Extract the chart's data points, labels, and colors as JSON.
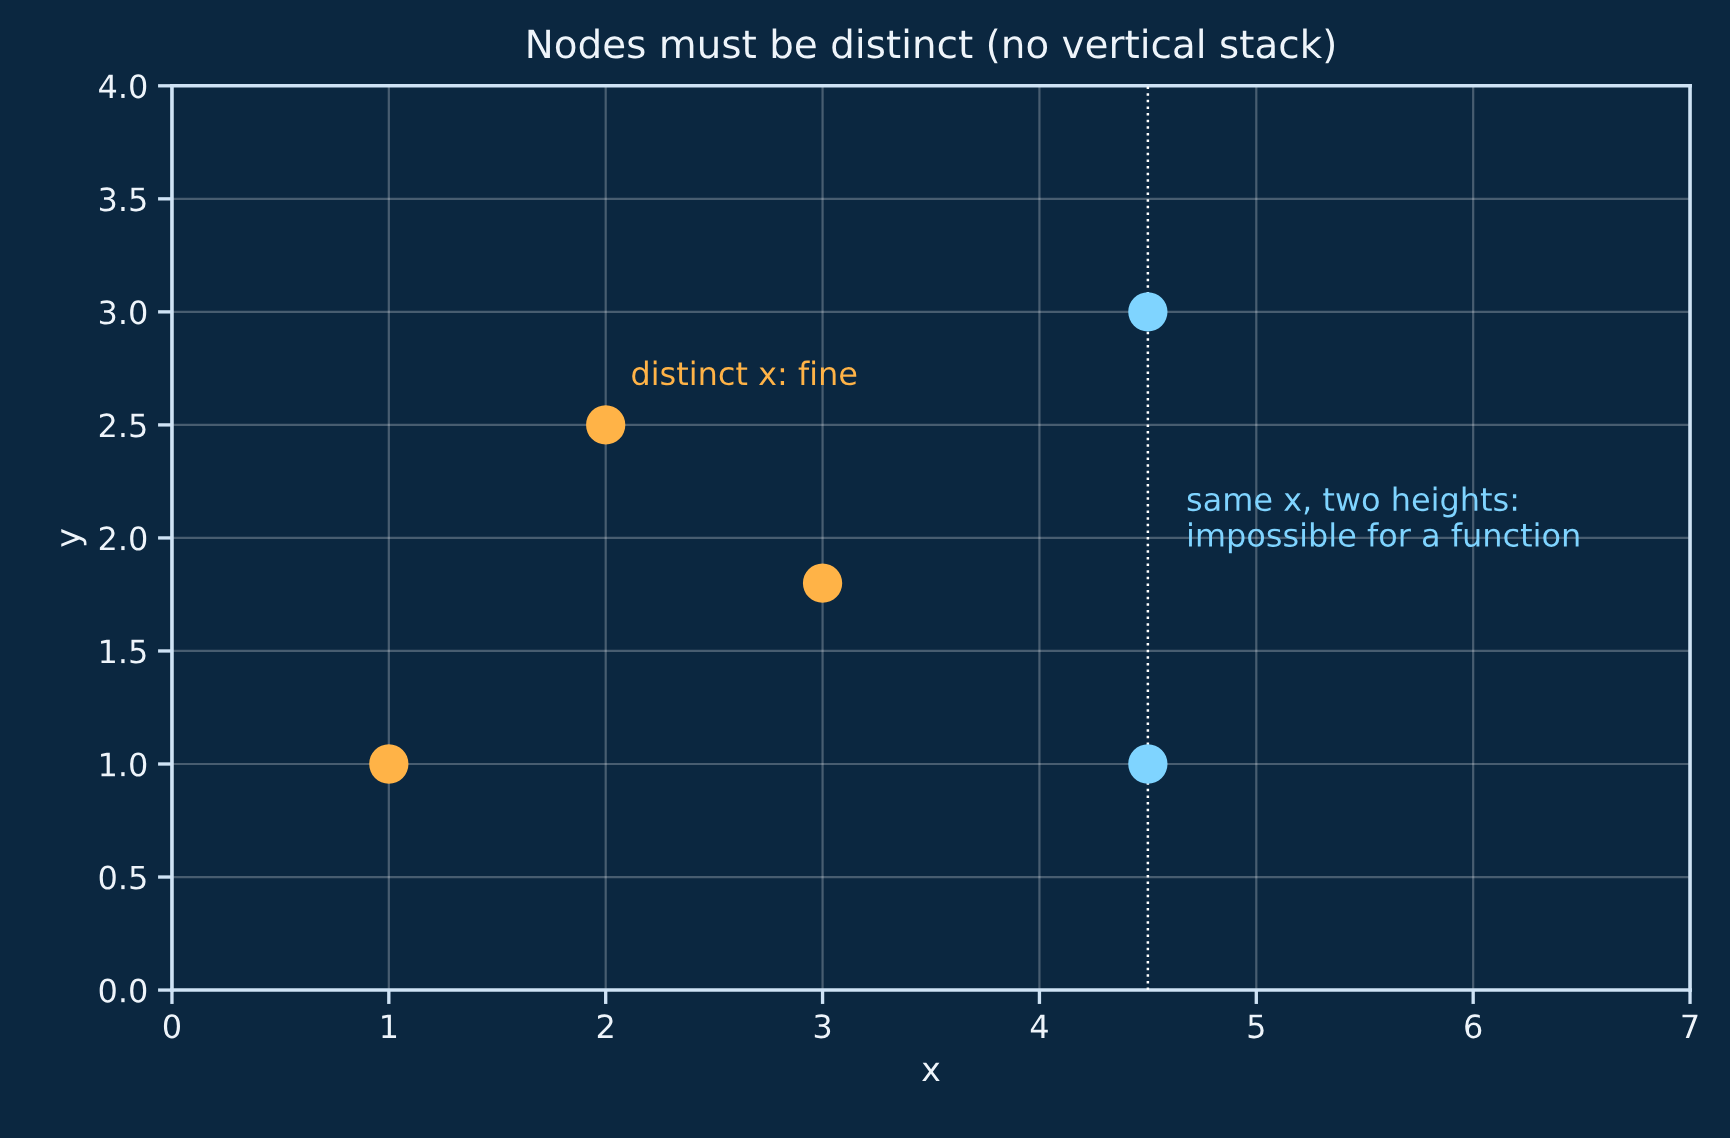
{
  "chart_data": {
    "type": "scatter",
    "title": "Nodes must be distinct (no vertical stack)",
    "xlabel": "x",
    "ylabel": "y",
    "series": [
      {
        "color": "#ffb347",
        "x": [
          1,
          2,
          3
        ],
        "values": [
          1.0,
          2.5,
          1.8
        ]
      },
      {
        "color": "#7fd4ff",
        "x": [
          4.5,
          4.5
        ],
        "values": [
          3.0,
          1.0
        ]
      }
    ],
    "xlim": [
      0,
      7
    ],
    "xticks": [
      0,
      1,
      2,
      3,
      4,
      5,
      6,
      7
    ],
    "ylim": [
      0,
      4
    ],
    "yticks": [
      {
        "value": 0,
        "label": "0.0"
      },
      {
        "value": 0.5,
        "label": "0.5"
      },
      {
        "value": 1,
        "label": "1.0"
      },
      {
        "value": 1.5,
        "label": "1.5"
      },
      {
        "value": 2,
        "label": "2.0"
      },
      {
        "value": 2.5,
        "label": "2.5"
      },
      {
        "value": 3,
        "label": "3.0"
      },
      {
        "value": 3.5,
        "label": "3.5"
      },
      {
        "value": 4,
        "label": "4.0"
      }
    ],
    "grid": true,
    "marker": "circle",
    "ref_lines": [
      {
        "axis": "x",
        "value": 4.5,
        "color": "#ffffff",
        "line_style": "dotted"
      }
    ],
    "annotations": [
      "distinct x: fine",
      "same x, two heights:\nimpossible for a function"
    ]
  }
}
